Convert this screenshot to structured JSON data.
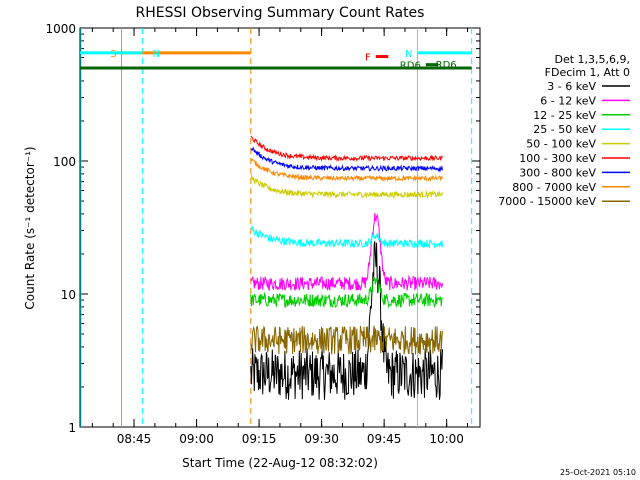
{
  "chart_data": {
    "type": "line",
    "title": "RHESSI Observing Summary Count Rates",
    "xlabel": "Start Time (22-Aug-12 08:32:02)",
    "ylabel": "Count Rate (s⁻¹ detector⁻¹)",
    "yscale": "log",
    "ylim": [
      1,
      1000
    ],
    "xlim_minutes": [
      "08:32:02",
      "10:08:00"
    ],
    "x_ticks": [
      "08:45",
      "09:00",
      "09:15",
      "09:30",
      "09:45",
      "10:00"
    ],
    "y_ticks": [
      "1",
      "10",
      "100",
      "1000"
    ],
    "legend_header": [
      "Det 1,3,5,6,9,",
      "FDecim 1, Att 0"
    ],
    "legend_placement": "right",
    "series": [
      {
        "name": "3 - 6 keV",
        "color": "#000000",
        "level": 2.5
      },
      {
        "name": "6 - 12 keV",
        "color": "#ff00ff",
        "level": 12
      },
      {
        "name": "12 - 25 keV",
        "color": "#00cc00",
        "level": 9
      },
      {
        "name": "25 - 50 keV",
        "color": "#00ffff",
        "level": 24
      },
      {
        "name": "50 - 100 keV",
        "color": "#cccc00",
        "level": 56
      },
      {
        "name": "100 - 300 keV",
        "color": "#ff0000",
        "level": 105
      },
      {
        "name": "300 - 800 keV",
        "color": "#0000ff",
        "level": 88
      },
      {
        "name": "800 - 7000 keV",
        "color": "#ff8800",
        "level": 74
      },
      {
        "name": "7000 - 15000 keV",
        "color": "#886600",
        "level": 4.5
      }
    ],
    "data_start": "09:13",
    "data_end": "09:59",
    "flare_peak_time": "09:43",
    "annotations": [
      {
        "label": "S",
        "color": "#ff8800",
        "level": 650,
        "start": "08:42",
        "end": "09:13"
      },
      {
        "label": "N",
        "color": "#00ffff",
        "level": 650,
        "start": "08:32:02",
        "end": "08:47",
        "label_near": "08:48"
      },
      {
        "label": "N",
        "color": "#00ffff",
        "level": 650,
        "start": "09:53",
        "end": "10:06"
      },
      {
        "label": "F",
        "color": "#ff0000",
        "level": 610,
        "start": "09:43",
        "end": "09:46"
      },
      {
        "label": "RD6",
        "color": "#006600",
        "level": 530,
        "start": "09:55",
        "end": "09:58"
      },
      {
        "label": "RD6",
        "color": "#006600",
        "level": 500,
        "start": "08:32:02",
        "end": "10:06"
      }
    ],
    "vertical_lines": [
      {
        "time": "08:42",
        "color": "#ff8800",
        "style": "solid"
      },
      {
        "time": "08:47",
        "color": "#00ffff",
        "style": "dashed"
      },
      {
        "time": "09:13",
        "color": "#ff8800",
        "style": "dashed"
      },
      {
        "time": "09:53",
        "color": "#00ffff",
        "style": "solid"
      },
      {
        "time": "10:06",
        "color": "#00ffff",
        "style": "dashed"
      }
    ]
  },
  "footer_timestamp": "25-Oct-2021 05:10"
}
